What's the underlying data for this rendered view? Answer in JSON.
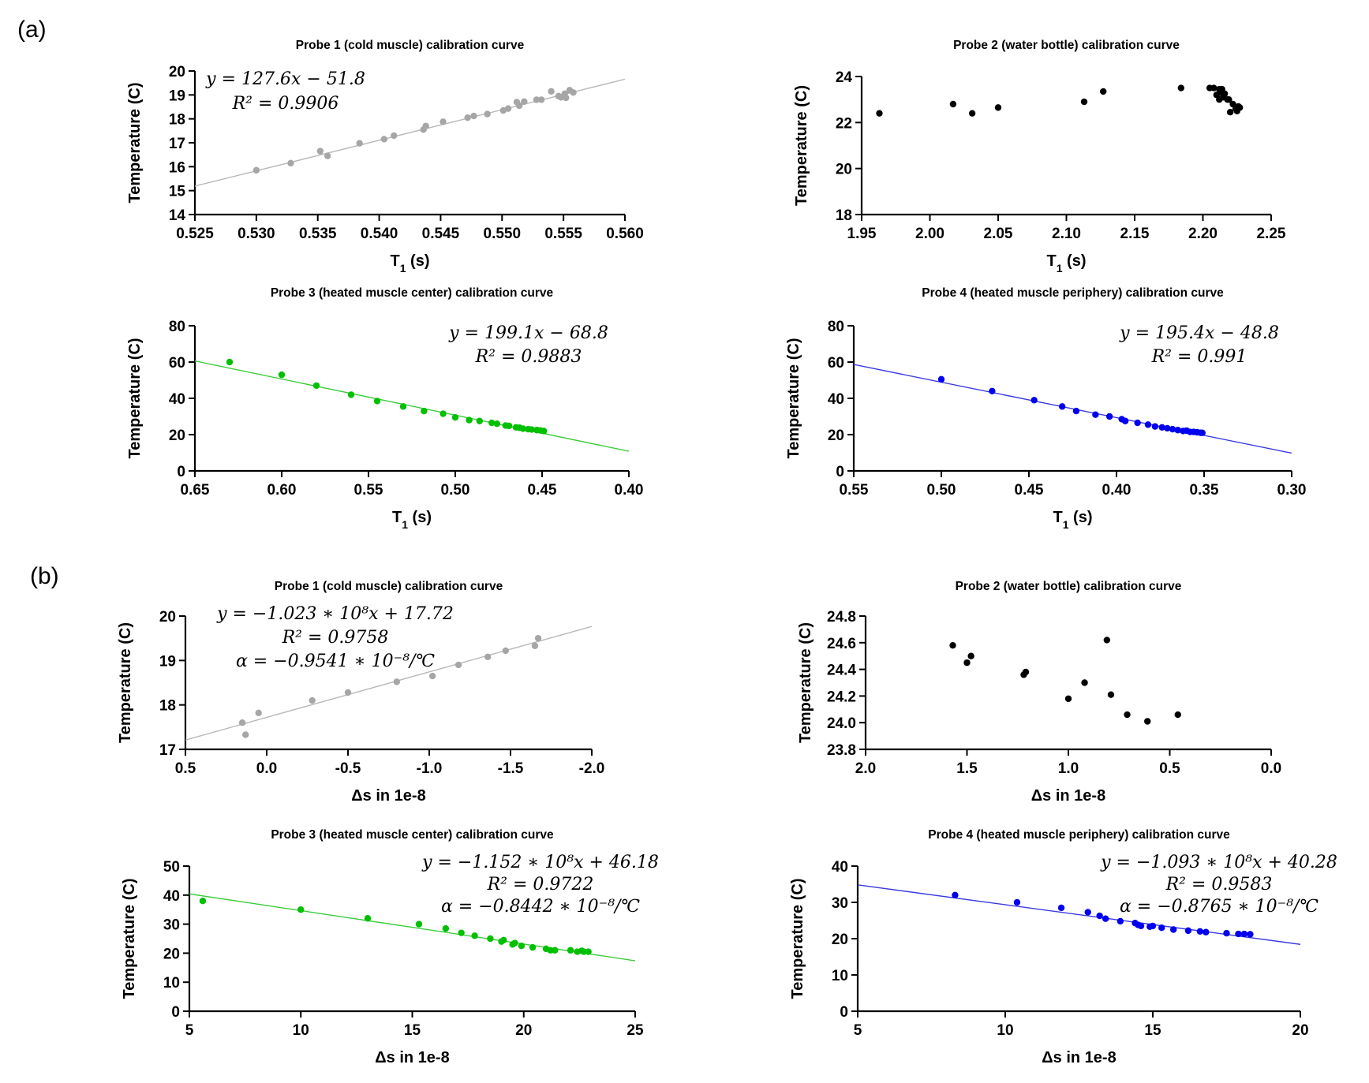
{
  "panel_labels": {
    "a": "(a)",
    "b": "(b)"
  },
  "chart_data": [
    {
      "type": "scatter",
      "title": "Probe 1 (cold muscle) calibration curve",
      "xlabel": "T1 (s)",
      "x_base": "T",
      "x_sub": "1",
      "x_unit": " (s)",
      "ylabel": "Temperature (C)",
      "xlim": [
        0.525,
        0.56
      ],
      "ylim": [
        14,
        20
      ],
      "xticks": [
        "0.525",
        "0.530",
        "0.535",
        "0.540",
        "0.545",
        "0.550",
        "0.555",
        "0.560"
      ],
      "yticks": [
        "14",
        "15",
        "16",
        "17",
        "18",
        "19",
        "20"
      ],
      "xreversed": false,
      "color": "#a6a6a6",
      "line_color": "#b8b8b8",
      "fit": {
        "slope": 127.6,
        "intercept": -51.8
      },
      "equations": [
        "y = 127.6x − 51.8",
        "R² = 0.9906"
      ],
      "points": [
        [
          0.53,
          15.85
        ],
        [
          0.5328,
          16.15
        ],
        [
          0.5352,
          16.65
        ],
        [
          0.5358,
          16.45
        ],
        [
          0.5384,
          16.98
        ],
        [
          0.5404,
          17.15
        ],
        [
          0.5412,
          17.3
        ],
        [
          0.5436,
          17.55
        ],
        [
          0.5438,
          17.7
        ],
        [
          0.5452,
          17.88
        ],
        [
          0.5472,
          18.05
        ],
        [
          0.5477,
          18.12
        ],
        [
          0.5488,
          18.2
        ],
        [
          0.5501,
          18.35
        ],
        [
          0.5505,
          18.43
        ],
        [
          0.5512,
          18.7
        ],
        [
          0.5514,
          18.55
        ],
        [
          0.5518,
          18.72
        ],
        [
          0.5528,
          18.8
        ],
        [
          0.5532,
          18.8
        ],
        [
          0.554,
          19.15
        ],
        [
          0.5546,
          18.95
        ],
        [
          0.5548,
          18.9
        ],
        [
          0.5551,
          19.05
        ],
        [
          0.5552,
          18.88
        ],
        [
          0.5555,
          19.2
        ],
        [
          0.5558,
          19.1
        ]
      ]
    },
    {
      "type": "scatter",
      "title": "Probe 2 (water bottle) calibration curve",
      "xlabel": "T1 (s)",
      "x_base": "T",
      "x_sub": "1",
      "x_unit": " (s)",
      "ylabel": "Temperature (C)",
      "xlim": [
        1.95,
        2.25
      ],
      "ylim": [
        18,
        24
      ],
      "xticks": [
        "1.95",
        "2.00",
        "2.05",
        "2.10",
        "2.15",
        "2.20",
        "2.25"
      ],
      "yticks": [
        "18",
        "20",
        "22",
        "24"
      ],
      "xreversed": false,
      "color": "#000000",
      "equations": [],
      "points": [
        [
          1.963,
          22.4
        ],
        [
          2.017,
          22.8
        ],
        [
          2.031,
          22.4
        ],
        [
          2.05,
          22.65
        ],
        [
          2.113,
          22.9
        ],
        [
          2.127,
          23.35
        ],
        [
          2.184,
          23.5
        ],
        [
          2.205,
          23.5
        ],
        [
          2.208,
          23.5
        ],
        [
          2.21,
          23.2
        ],
        [
          2.212,
          23.0
        ],
        [
          2.212,
          23.45
        ],
        [
          2.213,
          23.3
        ],
        [
          2.214,
          23.45
        ],
        [
          2.215,
          23.1
        ],
        [
          2.216,
          23.25
        ],
        [
          2.218,
          23.0
        ],
        [
          2.219,
          23.0
        ],
        [
          2.22,
          22.45
        ],
        [
          2.222,
          22.8
        ],
        [
          2.224,
          22.6
        ],
        [
          2.225,
          22.5
        ],
        [
          2.226,
          22.7
        ],
        [
          2.227,
          22.65
        ]
      ]
    },
    {
      "type": "scatter",
      "title": "Probe 3 (heated muscle center) calibration curve",
      "xlabel": "T1 (s)",
      "x_base": "T",
      "x_sub": "1",
      "x_unit": " (s)",
      "ylabel": "Temperature (C)",
      "xlim": [
        0.65,
        0.4
      ],
      "ylim": [
        0,
        80
      ],
      "xticks": [
        "0.65",
        "0.60",
        "0.55",
        "0.50",
        "0.45",
        "0.40"
      ],
      "yticks": [
        "0",
        "20",
        "40",
        "60",
        "80"
      ],
      "xreversed": true,
      "color": "#00c000",
      "line_color": "#3ccc3c",
      "fit": {
        "slope": 199.1,
        "intercept": -68.8
      },
      "equations": [
        "y = 199.1x − 68.8",
        "R² = 0.9883"
      ],
      "points": [
        [
          0.63,
          60
        ],
        [
          0.6,
          53
        ],
        [
          0.58,
          47
        ],
        [
          0.56,
          42
        ],
        [
          0.545,
          38.5
        ],
        [
          0.53,
          35.5
        ],
        [
          0.518,
          33
        ],
        [
          0.507,
          31.5
        ],
        [
          0.5,
          29.5
        ],
        [
          0.492,
          28
        ],
        [
          0.486,
          27.5
        ],
        [
          0.479,
          26.5
        ],
        [
          0.476,
          26
        ],
        [
          0.471,
          25
        ],
        [
          0.469,
          24.8
        ],
        [
          0.465,
          24
        ],
        [
          0.463,
          23.8
        ],
        [
          0.461,
          23.3
        ],
        [
          0.458,
          23
        ],
        [
          0.456,
          22.8
        ],
        [
          0.453,
          22.5
        ],
        [
          0.451,
          22.3
        ],
        [
          0.449,
          22
        ]
      ]
    },
    {
      "type": "scatter",
      "title": "Probe 4 (heated muscle periphery) calibration curve",
      "xlabel": "T1 (s)",
      "x_base": "T",
      "x_sub": "1",
      "x_unit": " (s)",
      "ylabel": "Temperature (C)",
      "xlim": [
        0.55,
        0.3
      ],
      "ylim": [
        0,
        80
      ],
      "xticks": [
        "0.55",
        "0.50",
        "0.45",
        "0.40",
        "0.35",
        "0.30"
      ],
      "yticks": [
        "0",
        "20",
        "40",
        "60",
        "80"
      ],
      "xreversed": true,
      "color": "#0000ee",
      "line_color": "#3a3ae0",
      "fit": {
        "slope": 195.4,
        "intercept": -48.8
      },
      "equations": [
        "y = 195.4x − 48.8",
        "R² = 0.991"
      ],
      "points": [
        [
          0.5,
          50.5
        ],
        [
          0.471,
          44
        ],
        [
          0.447,
          39
        ],
        [
          0.431,
          35.5
        ],
        [
          0.423,
          33
        ],
        [
          0.412,
          31
        ],
        [
          0.404,
          30
        ],
        [
          0.397,
          28.5
        ],
        [
          0.395,
          27.5
        ],
        [
          0.388,
          26.5
        ],
        [
          0.382,
          25.5
        ],
        [
          0.378,
          24.5
        ],
        [
          0.374,
          24
        ],
        [
          0.371,
          23.5
        ],
        [
          0.368,
          23
        ],
        [
          0.365,
          22.5
        ],
        [
          0.362,
          22
        ],
        [
          0.36,
          22.2
        ],
        [
          0.358,
          21.5
        ],
        [
          0.356,
          21.5
        ],
        [
          0.354,
          21.3
        ],
        [
          0.352,
          21
        ],
        [
          0.351,
          21
        ]
      ]
    },
    {
      "type": "scatter",
      "title": "Probe 1 (cold muscle) calibration curve",
      "xlabel": "Δs in 1e-8",
      "x_base": "Δs in 1e-8",
      "x_sub": "",
      "x_unit": "",
      "ylabel": "Temperature (C)",
      "xlim": [
        0.5,
        -2.0
      ],
      "ylim": [
        17,
        20
      ],
      "xticks": [
        "0.5",
        "0.0",
        "-0.5",
        "-1.0",
        "-1.5",
        "-2.0"
      ],
      "yticks": [
        "17",
        "18",
        "19",
        "20"
      ],
      "xreversed": true,
      "color": "#a6a6a6",
      "line_color": "#b8b8b8",
      "fit": {
        "slope": -1.023,
        "intercept": 17.72
      },
      "equations": [
        "y = −1.023 ∗ 10⁸x + 17.72",
        "R² = 0.9758",
        "α = −0.9541 ∗ 10⁻⁸/℃"
      ],
      "points": [
        [
          0.15,
          17.6
        ],
        [
          0.13,
          17.33
        ],
        [
          0.05,
          17.82
        ],
        [
          -0.28,
          18.1
        ],
        [
          -0.5,
          18.28
        ],
        [
          -0.8,
          18.52
        ],
        [
          -1.02,
          18.65
        ],
        [
          -1.18,
          18.9
        ],
        [
          -1.36,
          19.08
        ],
        [
          -1.47,
          19.22
        ],
        [
          -1.65,
          19.33
        ],
        [
          -1.67,
          19.5
        ]
      ]
    },
    {
      "type": "scatter",
      "title": "Probe 2 (water bottle) calibration curve",
      "xlabel": "Δs in 1e-8",
      "x_base": "Δs in 1e-8",
      "x_sub": "",
      "x_unit": "",
      "ylabel": "Temperature (C)",
      "xlim": [
        2.0,
        0.0
      ],
      "ylim": [
        23.8,
        24.8
      ],
      "xticks": [
        "2.0",
        "1.5",
        "1.0",
        "0.5",
        "0.0"
      ],
      "yticks": [
        "23.8",
        "24.0",
        "24.2",
        "24.4",
        "24.6",
        "24.8"
      ],
      "xreversed": true,
      "color": "#000000",
      "equations": [],
      "points": [
        [
          1.57,
          24.58
        ],
        [
          1.5,
          24.45
        ],
        [
          1.48,
          24.5
        ],
        [
          1.22,
          24.36
        ],
        [
          1.21,
          24.38
        ],
        [
          1.0,
          24.18
        ],
        [
          0.92,
          24.3
        ],
        [
          0.81,
          24.62
        ],
        [
          0.79,
          24.21
        ],
        [
          0.71,
          24.06
        ],
        [
          0.61,
          24.01
        ],
        [
          0.46,
          24.06
        ]
      ]
    },
    {
      "type": "scatter",
      "title": "Probe 3 (heated muscle center) calibration curve",
      "xlabel": "Δs in 1e-8",
      "x_base": "Δs in 1e-8",
      "x_sub": "",
      "x_unit": "",
      "ylabel": "Temperature (C)",
      "xlim": [
        5,
        25
      ],
      "ylim": [
        0,
        50
      ],
      "xticks": [
        "5",
        "10",
        "15",
        "20",
        "25"
      ],
      "yticks": [
        "0",
        "10",
        "20",
        "30",
        "40",
        "50"
      ],
      "xreversed": false,
      "color": "#00c000",
      "line_color": "#3ccc3c",
      "fit": {
        "slope": -1.152,
        "intercept": 46.18
      },
      "equations": [
        "y = −1.152 ∗ 10⁸x + 46.18",
        "R² = 0.9722",
        "α = −0.8442 ∗ 10⁻⁸/℃"
      ],
      "points": [
        [
          5.6,
          38
        ],
        [
          10,
          35
        ],
        [
          13,
          32
        ],
        [
          15.3,
          30
        ],
        [
          16.5,
          28.5
        ],
        [
          17.2,
          27
        ],
        [
          17.8,
          26
        ],
        [
          18.5,
          25
        ],
        [
          19,
          24
        ],
        [
          19.1,
          24.5
        ],
        [
          19.5,
          23
        ],
        [
          19.6,
          23.5
        ],
        [
          19.9,
          22.5
        ],
        [
          20.4,
          22
        ],
        [
          21,
          21.5
        ],
        [
          21.2,
          21
        ],
        [
          21.4,
          21
        ],
        [
          22.1,
          21
        ],
        [
          22.4,
          20.5
        ],
        [
          22.6,
          20.8
        ],
        [
          22.7,
          20.5
        ],
        [
          22.9,
          20.5
        ]
      ]
    },
    {
      "type": "scatter",
      "title": "Probe 4 (heated muscle periphery) calibration curve",
      "xlabel": "Δs in 1e-8",
      "x_base": "Δs in 1e-8",
      "x_sub": "",
      "x_unit": "",
      "ylabel": "Temperature (C)",
      "xlim": [
        5,
        20
      ],
      "ylim": [
        0,
        40
      ],
      "xticks": [
        "5",
        "10",
        "15",
        "20"
      ],
      "yticks": [
        "0",
        "10",
        "20",
        "30",
        "40"
      ],
      "xreversed": false,
      "color": "#0000ee",
      "line_color": "#3a3ae0",
      "fit": {
        "slope": -1.093,
        "intercept": 40.28
      },
      "equations": [
        "y = −1.093 ∗ 10⁸x + 40.28",
        "R² = 0.9583",
        "α = −0.8765 ∗ 10⁻⁸/℃"
      ],
      "points": [
        [
          8.3,
          32
        ],
        [
          10.4,
          30
        ],
        [
          11.9,
          28.5
        ],
        [
          12.8,
          27.3
        ],
        [
          13.2,
          26.3
        ],
        [
          13.4,
          25.5
        ],
        [
          13.9,
          24.8
        ],
        [
          14.4,
          24.3
        ],
        [
          14.5,
          23.8
        ],
        [
          14.6,
          23.5
        ],
        [
          14.9,
          23.3
        ],
        [
          15.0,
          23.5
        ],
        [
          15.3,
          23
        ],
        [
          15.7,
          22.5
        ],
        [
          16.2,
          22.2
        ],
        [
          16.6,
          22
        ],
        [
          16.8,
          21.8
        ],
        [
          17.5,
          21.5
        ],
        [
          17.9,
          21.3
        ],
        [
          18.1,
          21.3
        ],
        [
          18.3,
          21.2
        ]
      ]
    }
  ]
}
